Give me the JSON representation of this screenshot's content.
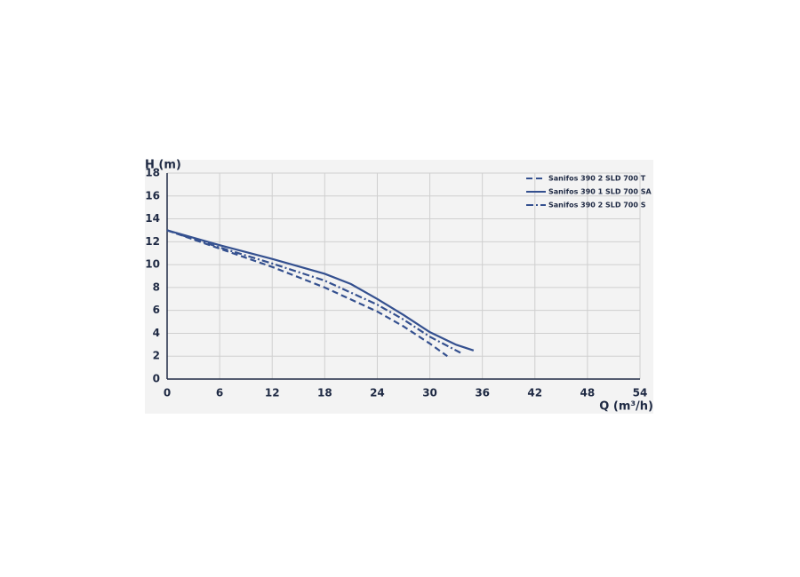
{
  "chart_data": {
    "type": "line",
    "y_label": "H (m)",
    "x_label": "Q (m³/h)",
    "xlim": [
      0,
      54
    ],
    "xticks": [
      0,
      6,
      12,
      18,
      24,
      30,
      36,
      42,
      48,
      54
    ],
    "ylim": [
      0,
      18
    ],
    "yticks": [
      0,
      2,
      4,
      6,
      8,
      10,
      12,
      14,
      16,
      18
    ],
    "grid": true,
    "legend": "upper right",
    "series": [
      {
        "name": "Sanifos 390 2 SLD 700 T",
        "color": "#34508f",
        "line_style": "dashed",
        "x": [
          0,
          6,
          12,
          18,
          24,
          27,
          30,
          32
        ],
        "values": [
          13,
          11.4,
          9.8,
          8.0,
          5.9,
          4.6,
          3.1,
          2.0
        ]
      },
      {
        "name": "Sanifos 390 1 SLD 700 SA",
        "color": "#34508f",
        "line_style": "solid",
        "x": [
          0,
          6,
          12,
          18,
          21,
          24,
          27,
          30,
          33,
          35
        ],
        "values": [
          13,
          11.7,
          10.5,
          9.2,
          8.3,
          7.0,
          5.6,
          4.1,
          3.0,
          2.5
        ]
      },
      {
        "name": "Sanifos 390 2 SLD 700 S",
        "color": "#34508f",
        "line_style": "dashdot",
        "x": [
          0,
          6,
          12,
          18,
          24,
          27,
          30,
          33.5
        ],
        "values": [
          13,
          11.5,
          10.1,
          8.6,
          6.5,
          5.2,
          3.7,
          2.3
        ]
      }
    ]
  }
}
